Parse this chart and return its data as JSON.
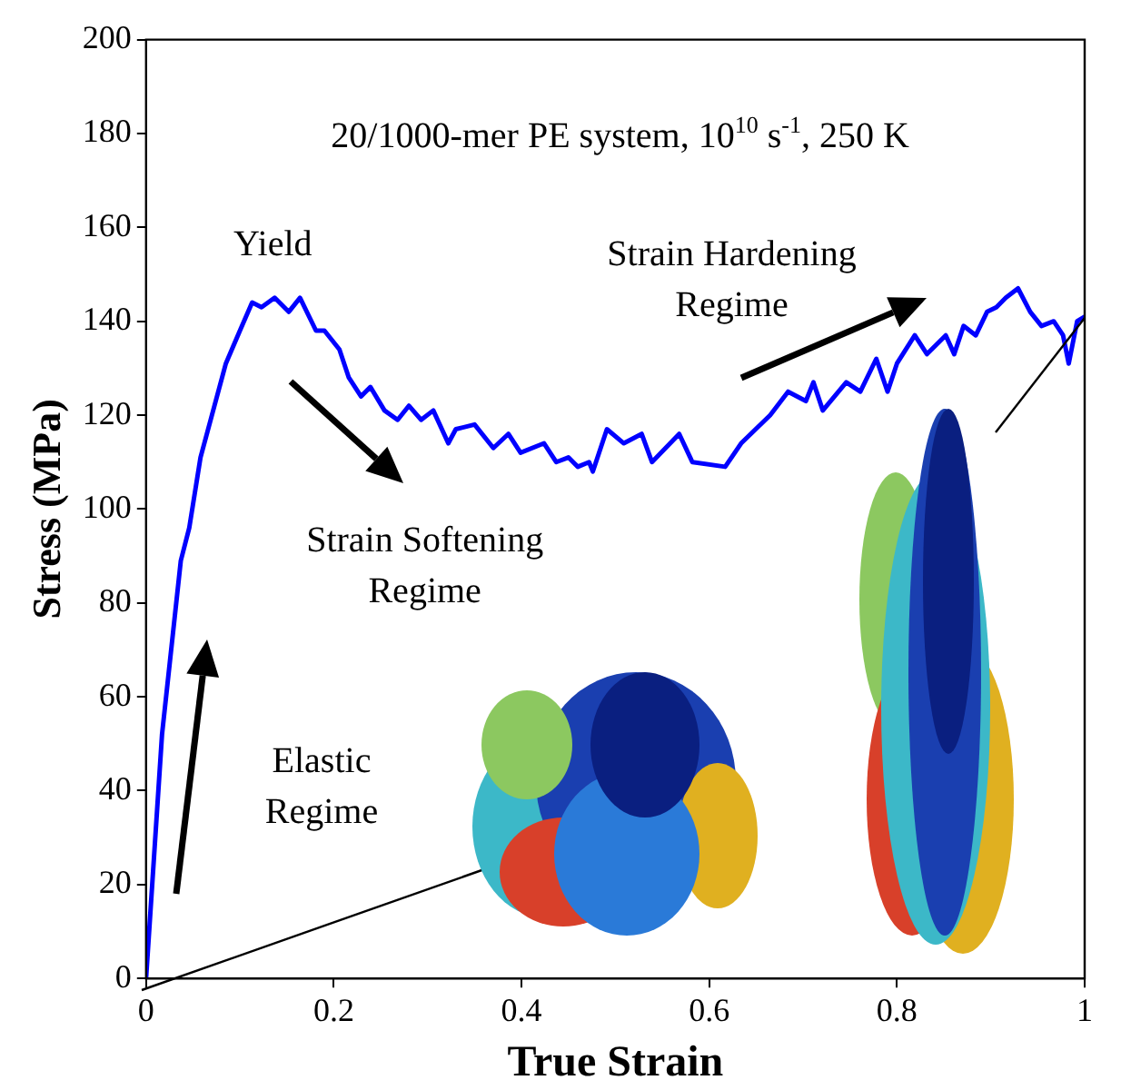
{
  "chart_data": {
    "type": "line",
    "title": "20/1000-mer PE system, 10$^{10}$ s$^{-1}$, 250 K",
    "xlabel": "True Strain",
    "ylabel": "Stress (MPa)",
    "annotations": [
      "Yield",
      "Strain Softening Regime",
      "Strain Hardening Regime",
      "Elastic Regime"
    ],
    "xlim": [
      0,
      1
    ],
    "xticks": [
      0,
      0.2,
      0.4,
      0.6,
      0.8,
      1
    ],
    "ylim": [
      0,
      200
    ],
    "yticks": [
      0,
      20,
      40,
      60,
      80,
      100,
      120,
      140,
      160,
      180,
      200
    ],
    "grid": false,
    "legend": false,
    "marker": "none",
    "line_style": "solid",
    "series": [
      {
        "color": "#0000ff",
        "x": [
          0,
          0.017,
          0.037,
          0.046,
          0.058,
          0.085,
          0.1,
          0.113,
          0.123,
          0.137,
          0.152,
          0.164,
          0.181,
          0.19,
          0.206,
          0.216,
          0.229,
          0.239,
          0.254,
          0.268,
          0.28,
          0.293,
          0.306,
          0.322,
          0.33,
          0.35,
          0.37,
          0.386,
          0.399,
          0.424,
          0.437,
          0.45,
          0.46,
          0.472,
          0.476,
          0.491,
          0.509,
          0.528,
          0.539,
          0.568,
          0.582,
          0.617,
          0.634,
          0.665,
          0.684,
          0.703,
          0.711,
          0.721,
          0.746,
          0.761,
          0.778,
          0.79,
          0.8,
          0.819,
          0.832,
          0.852,
          0.861,
          0.871,
          0.884,
          0.896,
          0.906,
          0.916,
          0.929,
          0.942,
          0.954,
          0.967,
          0.977,
          0.983,
          0.992,
          1
        ],
        "values": [
          0,
          52,
          89,
          96,
          111,
          131,
          138,
          144,
          143,
          145,
          142,
          145,
          138,
          138,
          134,
          128,
          124,
          126,
          121,
          119,
          122,
          119,
          121,
          114,
          117,
          118,
          113,
          116,
          112,
          114,
          110,
          111,
          109,
          110,
          108,
          117,
          114,
          116,
          110,
          116,
          110,
          109,
          114,
          120,
          125,
          123,
          127,
          121,
          127,
          125,
          132,
          125,
          131,
          137,
          133,
          137,
          133,
          139,
          137,
          142,
          143,
          145,
          147,
          142,
          139,
          140,
          137,
          131,
          140,
          141
        ]
      }
    ]
  }
}
